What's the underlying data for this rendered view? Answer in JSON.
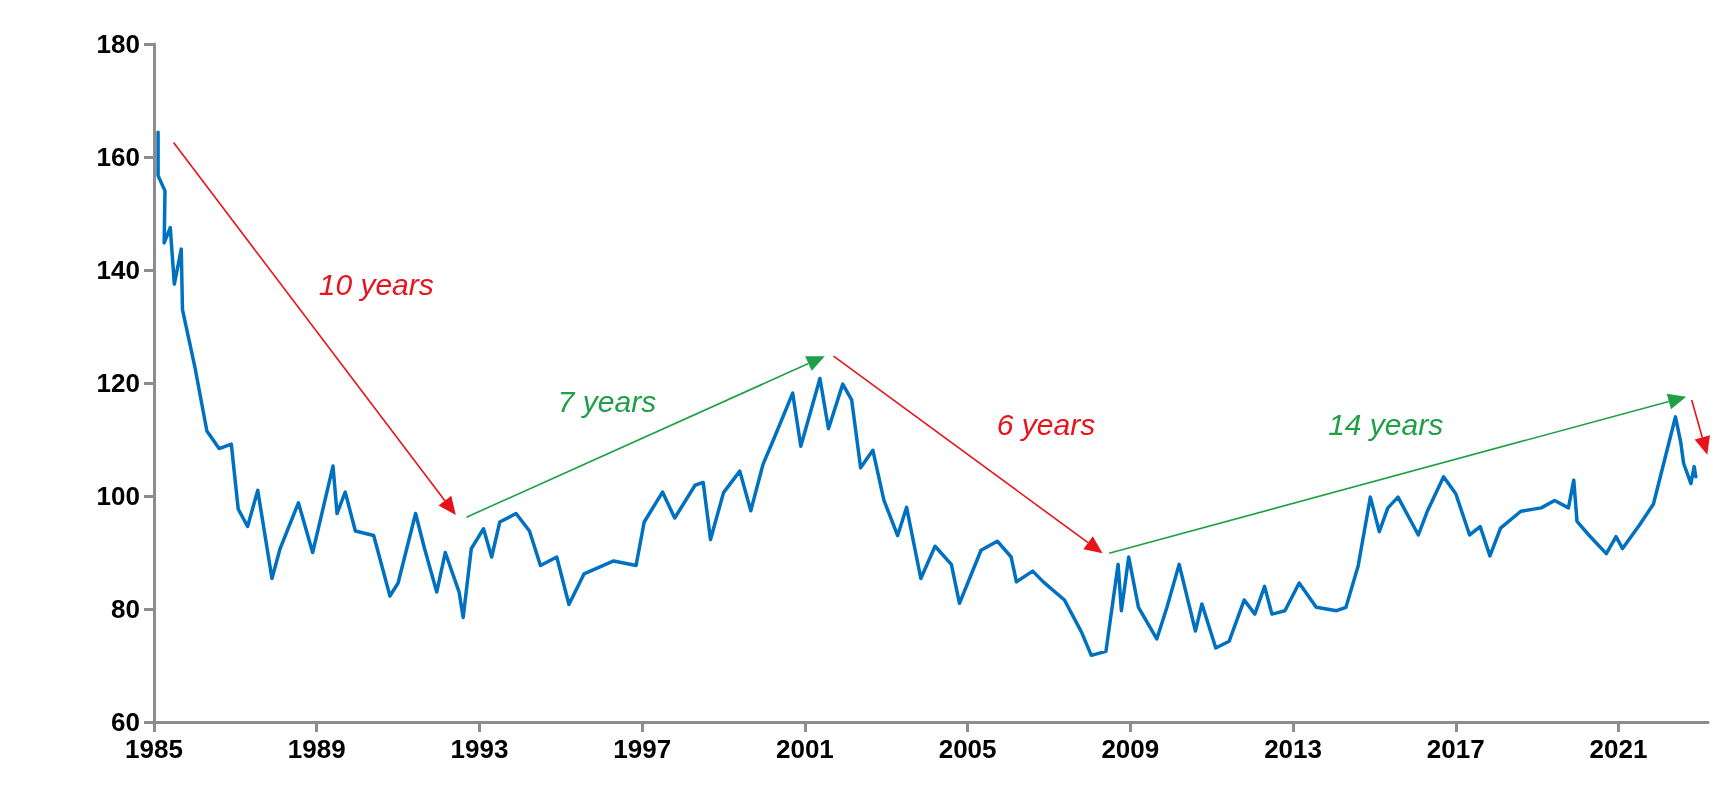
{
  "chart_data": {
    "type": "line",
    "xlim": [
      1985,
      2023.2
    ],
    "xticks": [
      1985,
      1989,
      1993,
      1997,
      2001,
      2005,
      2009,
      2013,
      2017,
      2021
    ],
    "ylim": [
      60,
      180
    ],
    "yticks": [
      60,
      80,
      100,
      120,
      140,
      160,
      180
    ],
    "grid": false,
    "marker": "none",
    "line_style": "solid",
    "annotations": [
      "10 years",
      "7 years",
      "6 years",
      "14 years"
    ],
    "series": [
      {
        "color": "#0070c0",
        "x": [
          1985.1,
          1985.1,
          1985.27,
          1985.25,
          1985.4,
          1985.5,
          1985.67,
          1985.7,
          1986.0,
          1986.3,
          1986.6,
          1986.9,
          1987.07,
          1987.3,
          1987.55,
          1987.9,
          1988.1,
          1988.55,
          1988.9,
          1989.1,
          1989.4,
          1989.5,
          1989.7,
          1989.95,
          1990.4,
          1990.8,
          1991.0,
          1991.43,
          1991.65,
          1991.95,
          1992.16,
          1992.5,
          1992.6,
          1992.8,
          1993.1,
          1993.3,
          1993.5,
          1993.9,
          1994.23,
          1994.5,
          1994.9,
          1995.2,
          1995.57,
          1996.3,
          1996.85,
          1997.05,
          1997.5,
          1997.8,
          1998.3,
          1998.5,
          1998.68,
          1999.0,
          1999.4,
          1999.67,
          1999.97,
          2000.23,
          2000.7,
          2000.9,
          2001.37,
          2001.58,
          2001.93,
          2002.15,
          2002.37,
          2002.67,
          2002.94,
          2003.28,
          2003.5,
          2003.85,
          2004.2,
          2004.6,
          2004.8,
          2005.33,
          2005.73,
          2006.07,
          2006.2,
          2006.6,
          2006.86,
          2007.38,
          2007.8,
          2008.04,
          2008.4,
          2008.7,
          2008.78,
          2008.96,
          2009.2,
          2009.65,
          2009.9,
          2010.2,
          2010.6,
          2010.76,
          2011.1,
          2011.43,
          2011.8,
          2012.06,
          2012.3,
          2012.48,
          2012.8,
          2013.15,
          2013.57,
          2014.07,
          2014.3,
          2014.6,
          2014.9,
          2015.12,
          2015.33,
          2015.58,
          2016.08,
          2016.3,
          2016.7,
          2017.0,
          2017.34,
          2017.6,
          2017.84,
          2018.1,
          2018.6,
          2019.1,
          2019.43,
          2019.77,
          2019.9,
          2019.98,
          2020.27,
          2020.7,
          2020.94,
          2021.1,
          2021.52,
          2021.86,
          2022.07,
          2022.4,
          2022.53,
          2022.6,
          2022.78,
          2022.86,
          2022.9
        ],
        "values": [
          164.4,
          156.7,
          154,
          144.8,
          147.5,
          137.5,
          143.7,
          133,
          123,
          111.5,
          108.4,
          109.2,
          97.7,
          94.6,
          101,
          85.4,
          90.7,
          98.8,
          90,
          96.1,
          105.3,
          96.9,
          100.7,
          93.8,
          93,
          82.3,
          84.6,
          96.9,
          90.7,
          83,
          90,
          83,
          78.5,
          90.7,
          94.2,
          89.2,
          95.4,
          96.9,
          93.8,
          87.7,
          89.2,
          80.8,
          86.2,
          88.5,
          87.7,
          95.4,
          100.7,
          96.1,
          101.9,
          102.4,
          92.3,
          100.6,
          104.4,
          97.4,
          105.6,
          110.0,
          118.2,
          108.8,
          120.8,
          111.9,
          119.8,
          117,
          105,
          108.1,
          99.3,
          93,
          98,
          85.4,
          91.1,
          87.9,
          81,
          90.4,
          92,
          89.2,
          84.8,
          86.7,
          84.8,
          81.6,
          75.9,
          71.8,
          72.5,
          87.9,
          79.7,
          89.2,
          80.3,
          74.7,
          80.3,
          87.9,
          76.1,
          80.9,
          73.1,
          74.3,
          81.6,
          79.1,
          84,
          79.1,
          79.7,
          84.6,
          80.3,
          79.7,
          80.3,
          87.6,
          99.8,
          93.7,
          97.9,
          99.8,
          93.1,
          97.3,
          103.4,
          100.4,
          93.1,
          94.6,
          89.4,
          94.3,
          97.3,
          97.9,
          99.2,
          97.9,
          102.8,
          95.5,
          93.1,
          89.8,
          92.8,
          90.7,
          94.9,
          98.6,
          104.6,
          114,
          109.5,
          105.8,
          102.2,
          105.2,
          103.4
        ]
      }
    ]
  }
}
